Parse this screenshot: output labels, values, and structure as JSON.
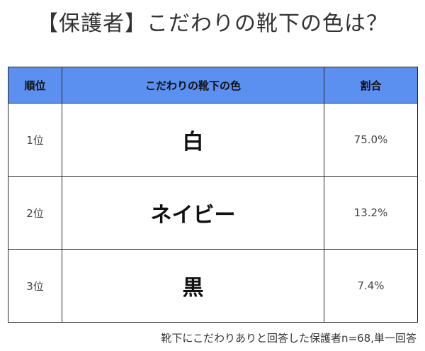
{
  "title": "【保護者】こだわりの靴下の色は？",
  "table": {
    "headers": {
      "rank": "順位",
      "color": "こだわりの靴下の色",
      "ratio": "割合"
    },
    "rows": [
      {
        "rank": "1位",
        "color": "白",
        "ratio": "75.0%"
      },
      {
        "rank": "2位",
        "color": "ネイビー",
        "ratio": "13.2%"
      },
      {
        "rank": "3位",
        "color": "黒",
        "ratio": "7.4%"
      }
    ]
  },
  "note": "靴下にこだわりありと回答した保護者n=68,単一回答",
  "colors": {
    "header_bg": "#5b8ff0",
    "border": "#2b2b2b"
  }
}
